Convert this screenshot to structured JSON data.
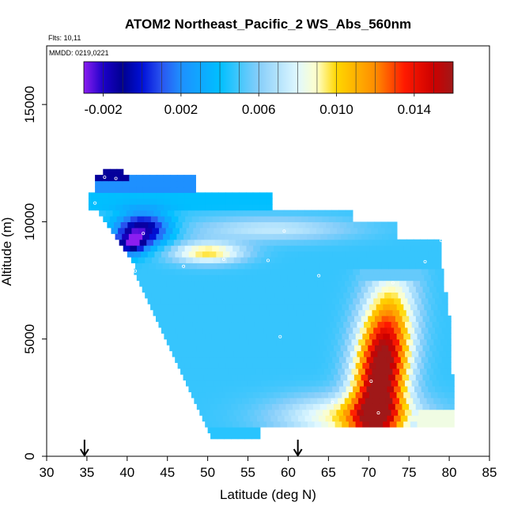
{
  "chart_data": {
    "type": "heatmap",
    "title": "ATOM2 Northeast_Pacific_2 WS_Abs_560nm",
    "subtitle_lines": [
      "Flts: 10,11",
      "MMDD: 0219,0221"
    ],
    "xlabel": "Latitude (deg N)",
    "ylabel": "Altitude (m)",
    "xlim": [
      30,
      85
    ],
    "ylim": [
      0,
      17500
    ],
    "x_ticks": [
      30,
      35,
      40,
      45,
      50,
      55,
      60,
      65,
      70,
      75,
      80,
      85
    ],
    "y_ticks": [
      0,
      5000,
      10000,
      15000
    ],
    "grid": false,
    "legend": {
      "placement": "top",
      "range": [
        -0.003,
        0.016
      ],
      "tick_values": [
        -0.002,
        0.002,
        0.006,
        0.01,
        0.014
      ],
      "tick_labels": [
        "-0.002",
        "0.002",
        "0.006",
        "0.010",
        "0.014"
      ],
      "stops": [
        {
          "v": -0.003,
          "c": "#8b1ef0"
        },
        {
          "v": -0.002,
          "c": "#1b00c8"
        },
        {
          "v": -0.001,
          "c": "#000090"
        },
        {
          "v": 0.0,
          "c": "#0010d8"
        },
        {
          "v": 0.001,
          "c": "#2a55f0"
        },
        {
          "v": 0.002,
          "c": "#1e90ff"
        },
        {
          "v": 0.004,
          "c": "#00bfff"
        },
        {
          "v": 0.006,
          "c": "#87cefa"
        },
        {
          "v": 0.008,
          "c": "#e0f8ff"
        },
        {
          "v": 0.009,
          "c": "#ffffc8"
        },
        {
          "v": 0.01,
          "c": "#ffd700"
        },
        {
          "v": 0.012,
          "c": "#ff8c00"
        },
        {
          "v": 0.0135,
          "c": "#ff1a00"
        },
        {
          "v": 0.015,
          "c": "#cc0000"
        },
        {
          "v": 0.016,
          "c": "#a01818"
        }
      ]
    },
    "arrows_at_latitude": [
      34.7,
      61.2
    ],
    "sample_points": [
      [
        37.2,
        11900
      ],
      [
        38.6,
        11850
      ],
      [
        36.0,
        10800
      ],
      [
        42.0,
        9500
      ],
      [
        59.5,
        9600
      ],
      [
        79.0,
        9200
      ],
      [
        57.5,
        8350
      ],
      [
        52.0,
        8400
      ],
      [
        47.0,
        8100
      ],
      [
        41.0,
        7900
      ],
      [
        63.8,
        7700
      ],
      [
        73.0,
        7400
      ],
      [
        77.0,
        8300
      ],
      [
        59.0,
        5100
      ],
      [
        70.3,
        3200
      ],
      [
        65.5,
        2300
      ],
      [
        71.2,
        1850
      ],
      [
        80.3,
        1050
      ],
      [
        50.2,
        650
      ],
      [
        56.3,
        650
      ]
    ]
  }
}
